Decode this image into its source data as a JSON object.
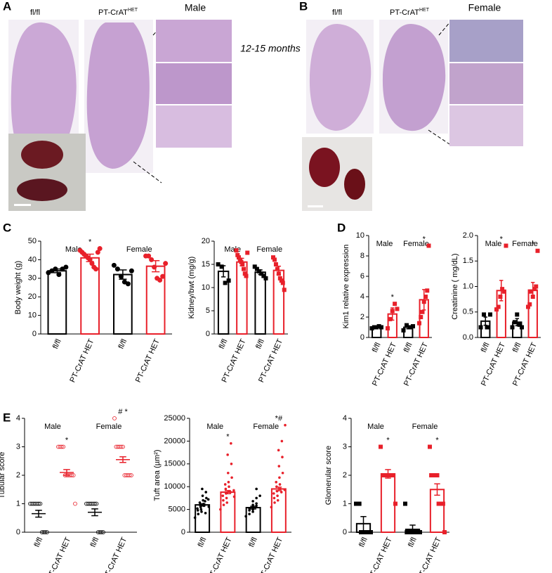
{
  "figure": {
    "panel_letters": [
      "A",
      "B",
      "C",
      "D",
      "E"
    ],
    "a": {
      "sex": "Male",
      "col1": "fl/fl",
      "col2": "PT-CrAT",
      "col2_sup": "HET",
      "age": "12-15 months"
    },
    "b": {
      "sex": "Female",
      "col1": "fl/fl",
      "col2": "PT-CrAT",
      "col2_sup": "HET"
    }
  },
  "chart_data": [
    {
      "type": "bar",
      "y_label": "Body weight (g)",
      "categories": [
        "fl/fl",
        "PT-CrAT HET",
        "fl/fl",
        "PT-CrAT HET"
      ],
      "groups": [
        "Male",
        "Female"
      ],
      "colors": [
        "#000000",
        "#e8202a",
        "#000000",
        "#e8202a"
      ],
      "marker": "circle",
      "values": [
        34,
        41,
        32,
        36.5
      ],
      "errors": [
        1,
        2,
        2.5,
        3
      ],
      "points": [
        [
          33,
          34,
          35,
          32,
          35,
          36
        ],
        [
          45,
          44,
          43,
          42,
          41,
          40,
          38,
          36,
          35,
          44,
          46
        ],
        [
          37,
          35,
          31,
          28,
          27,
          34
        ],
        [
          42,
          42,
          40,
          36,
          30,
          29,
          31,
          38
        ]
      ],
      "significance": [
        null,
        "*",
        null,
        null
      ],
      "ylim": [
        0,
        50
      ],
      "yticks": [
        0,
        10,
        20,
        30,
        40,
        50
      ]
    },
    {
      "type": "bar",
      "y_label": "Kidney/bwt (mg/g)",
      "categories": [
        "fl/fl",
        "PT-CrAT HET",
        "fl/fl",
        "PT-CrAT HET"
      ],
      "groups": [
        "Male",
        "Female"
      ],
      "colors": [
        "#000000",
        "#e8202a",
        "#000000",
        "#e8202a"
      ],
      "marker": "square",
      "values": [
        13.5,
        15.5,
        13.3,
        13.7
      ],
      "errors": [
        1.2,
        0.8,
        0.5,
        0.9
      ],
      "points": [
        [
          15,
          14.5,
          11,
          11.5
        ],
        [
          18,
          17,
          16.5,
          16,
          15.5,
          15,
          14,
          13,
          12.5,
          17.5
        ],
        [
          14.5,
          14,
          13.5,
          13,
          12.5,
          12
        ],
        [
          16.5,
          16,
          15,
          14,
          13,
          12,
          11.5,
          11,
          9.5
        ]
      ],
      "significance": [
        null,
        null,
        null,
        null
      ],
      "ylim": [
        0,
        20
      ],
      "yticks": [
        0,
        5,
        10,
        15,
        20
      ]
    },
    {
      "type": "bar",
      "y_label": "Kim1 relative expression",
      "categories": [
        "fl/fl",
        "PT-CrAT HET",
        "fl/fl",
        "PT-CrAT HET"
      ],
      "groups": [
        "Male",
        "Female"
      ],
      "colors": [
        "#000000",
        "#e8202a",
        "#000000",
        "#e8202a"
      ],
      "marker": "square",
      "values": [
        1,
        2.3,
        1,
        3.7
      ],
      "errors": [
        0.05,
        0.6,
        0.15,
        1
      ],
      "points": [
        [
          0.9,
          1,
          1,
          1.1,
          1
        ],
        [
          0.9,
          1.8,
          2.6,
          3.3,
          2.8
        ],
        [
          0.7,
          1.2,
          1,
          1.1
        ],
        [
          1.4,
          2,
          2.5,
          3.5,
          4,
          4.6,
          9
        ]
      ],
      "significance": [
        null,
        "*",
        null,
        "*"
      ],
      "ylim": [
        0,
        10
      ],
      "yticks": [
        0,
        2,
        4,
        6,
        8,
        10
      ]
    },
    {
      "type": "bar",
      "y_label": "Creatinine ( mg/dL)",
      "categories": [
        "fl/fl",
        "PT-CrAT HET",
        "fl/fl",
        "PT-CrAT HET"
      ],
      "groups": [
        "Male",
        "Female"
      ],
      "colors": [
        "#000000",
        "#e8202a",
        "#000000",
        "#e8202a"
      ],
      "marker": "square",
      "values": [
        0.32,
        0.92,
        0.3,
        0.93
      ],
      "errors": [
        0.08,
        0.2,
        0.07,
        0.15
      ],
      "points": [
        [
          0.2,
          0.45,
          0.2,
          0.45
        ],
        [
          0.55,
          0.6,
          0.8,
          0.95,
          0.9,
          1.8
        ],
        [
          0.2,
          0.3,
          0.45,
          0.25,
          0.2
        ],
        [
          0.6,
          0.65,
          0.9,
          0.8,
          0.95,
          1,
          1.7
        ]
      ],
      "significance": [
        null,
        "*",
        null,
        "*"
      ],
      "ylim": [
        0,
        2.0
      ],
      "yticks": [
        {
          "value": 0,
          "label": "0.0"
        },
        {
          "value": 0.5,
          "label": "0.5"
        },
        {
          "value": 1,
          "label": "1.0"
        },
        {
          "value": 1.5,
          "label": "1.5"
        },
        {
          "value": 2,
          "label": "2.0"
        }
      ]
    },
    {
      "type": "dot",
      "y_label": "Tubular score",
      "categories": [
        "fl/fl",
        "PT-CrAT HET",
        "fl/fl",
        "PT-CrAT HET"
      ],
      "groups": [
        "Male",
        "Female"
      ],
      "colors": [
        "#000000",
        "#e8202a",
        "#000000",
        "#e8202a"
      ],
      "marker": "open-circle",
      "values": [
        0.65,
        2.1,
        0.7,
        2.55
      ],
      "errors": [
        0.12,
        0.1,
        0.12,
        0.1
      ],
      "points": [
        [
          1,
          1,
          1,
          1,
          1,
          1,
          1,
          0,
          0,
          0,
          0
        ],
        [
          3,
          3,
          3,
          3,
          2,
          2,
          2,
          2,
          2,
          2,
          1
        ],
        [
          1,
          1,
          1,
          1,
          1,
          1,
          1,
          0,
          0,
          0,
          0
        ],
        [
          4,
          3,
          3,
          3,
          3,
          3,
          2,
          2,
          2,
          2,
          2
        ]
      ],
      "significance": [
        null,
        "*",
        null,
        "# *"
      ],
      "ylim": [
        0,
        4
      ],
      "yticks": [
        0,
        1,
        2,
        3,
        4
      ]
    },
    {
      "type": "bar",
      "y_label": "Tuft area (µm²)",
      "categories": [
        "fl/fl",
        "PT-CrAT HET",
        "fl/fl",
        "PT-CrAT HET"
      ],
      "groups": [
        "Male",
        "Female"
      ],
      "colors": [
        "#000000",
        "#e8202a",
        "#000000",
        "#e8202a"
      ],
      "marker": "small",
      "values": [
        6000,
        8800,
        5400,
        9500
      ],
      "errors": [
        250,
        350,
        300,
        400
      ],
      "points": [
        [
          3200,
          4000,
          4500,
          4800,
          5000,
          5200,
          5500,
          5800,
          6000,
          6200,
          6500,
          7000,
          7500,
          8000,
          8800,
          9500,
          4200,
          5600,
          6800,
          7200
        ],
        [
          5000,
          6000,
          6500,
          7000,
          7500,
          8000,
          8500,
          9000,
          9500,
          10000,
          10500,
          11000,
          12000,
          13000,
          15000,
          17000,
          19500,
          7800,
          8800,
          9200
        ],
        [
          3500,
          4000,
          4500,
          4800,
          5000,
          5200,
          5500,
          5800,
          6000,
          6300,
          6800,
          7500,
          8000,
          9500
        ],
        [
          5500,
          6500,
          7000,
          7500,
          8000,
          8500,
          9000,
          9500,
          10000,
          10500,
          11000,
          12000,
          13000,
          14500,
          16500,
          18000,
          20000,
          23500,
          8800,
          9300
        ]
      ],
      "significance": [
        null,
        "*",
        null,
        "*#"
      ],
      "ylim": [
        0,
        25000
      ],
      "yticks": [
        0,
        5000,
        10000,
        15000,
        20000,
        25000
      ]
    },
    {
      "type": "bar",
      "y_label": "Glomerular score",
      "categories": [
        "fl/fl",
        "PT-CrAT HET",
        "fl/fl",
        "PT-CrAT HET"
      ],
      "groups": [
        "Male",
        "Female"
      ],
      "colors": [
        "#000000",
        "#e8202a",
        "#000000",
        "#e8202a"
      ],
      "marker": "wide",
      "values": [
        0.3,
        2.05,
        0.1,
        1.5
      ],
      "errors": [
        0.25,
        0.15,
        0.15,
        0.2
      ],
      "points": [
        [
          1,
          1,
          1,
          0,
          0,
          0,
          0,
          0,
          0,
          0
        ],
        [
          3,
          2,
          2,
          2,
          2,
          2,
          2,
          1
        ],
        [
          1,
          0,
          0,
          0,
          0,
          0,
          0,
          0,
          0,
          0
        ],
        [
          3,
          2,
          2,
          2,
          2,
          2,
          1,
          1,
          1,
          1,
          0
        ]
      ],
      "significance": [
        null,
        "*",
        null,
        "*"
      ],
      "ylim": [
        0,
        4
      ],
      "yticks": [
        0,
        1,
        2,
        3,
        4
      ]
    }
  ]
}
